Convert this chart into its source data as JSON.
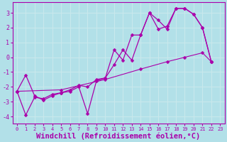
{
  "xlabel": "Windchill (Refroidissement éolien,°C)",
  "background_color": "#b2e0e8",
  "grid_color": "#c8e8ec",
  "line_color": "#aa00aa",
  "xlim": [
    -0.5,
    23.5
  ],
  "ylim": [
    -4.5,
    3.7
  ],
  "xticks": [
    0,
    1,
    2,
    3,
    4,
    5,
    6,
    7,
    8,
    9,
    10,
    11,
    12,
    13,
    14,
    15,
    16,
    17,
    18,
    19,
    20,
    21,
    22,
    23
  ],
  "yticks": [
    -4,
    -3,
    -2,
    -1,
    0,
    1,
    2,
    3
  ],
  "series1": [
    [
      0,
      -2.3
    ],
    [
      1,
      -1.2
    ],
    [
      2,
      -2.6
    ],
    [
      3,
      -2.9
    ],
    [
      4,
      -2.6
    ],
    [
      5,
      -2.4
    ],
    [
      6,
      -2.3
    ],
    [
      7,
      -2.0
    ],
    [
      8,
      -3.8
    ],
    [
      9,
      -1.6
    ],
    [
      10,
      -1.4
    ],
    [
      11,
      -0.5
    ],
    [
      12,
      0.5
    ],
    [
      13,
      -0.2
    ],
    [
      14,
      1.5
    ],
    [
      15,
      3.0
    ],
    [
      16,
      1.9
    ],
    [
      17,
      2.1
    ],
    [
      18,
      3.3
    ],
    [
      19,
      3.3
    ],
    [
      20,
      2.9
    ],
    [
      21,
      2.0
    ],
    [
      22,
      -0.3
    ]
  ],
  "series2": [
    [
      0,
      -2.3
    ],
    [
      1,
      -3.9
    ],
    [
      2,
      -2.7
    ],
    [
      3,
      -2.8
    ],
    [
      4,
      -2.5
    ],
    [
      5,
      -2.4
    ],
    [
      6,
      -2.2
    ],
    [
      7,
      -1.9
    ],
    [
      8,
      -2.0
    ],
    [
      9,
      -1.5
    ],
    [
      10,
      -1.4
    ],
    [
      11,
      0.5
    ],
    [
      12,
      -0.2
    ],
    [
      13,
      1.5
    ],
    [
      14,
      1.5
    ],
    [
      15,
      3.0
    ],
    [
      16,
      2.5
    ],
    [
      17,
      1.9
    ],
    [
      18,
      3.3
    ],
    [
      19,
      3.3
    ],
    [
      20,
      2.9
    ],
    [
      21,
      2.0
    ],
    [
      22,
      -0.3
    ]
  ],
  "series3": [
    [
      0,
      -2.3
    ],
    [
      5,
      -2.2
    ],
    [
      10,
      -1.5
    ],
    [
      14,
      -0.8
    ],
    [
      17,
      -0.3
    ],
    [
      19,
      0.0
    ],
    [
      21,
      0.3
    ],
    [
      22,
      -0.3
    ]
  ],
  "xlabel_fontsize": 7.5,
  "tick_fontsize": 6
}
